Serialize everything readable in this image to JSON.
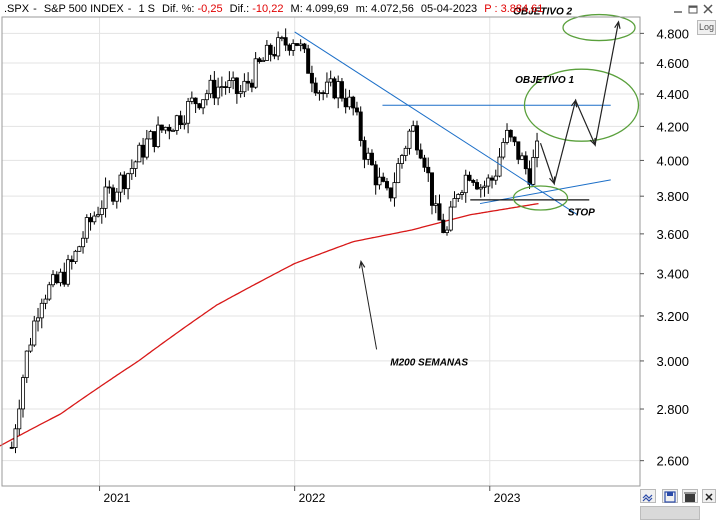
{
  "header": {
    "symbol": ".SPX",
    "name": "S&P 500 INDEX",
    "period": "1 S",
    "dif_pct_label": "Dif. %:",
    "dif_pct_value": "-0,25",
    "dif_label": "Dif.:",
    "dif_value": "-10,22",
    "max_label": "M:",
    "max_value": "4.099,69",
    "min_label": "m:",
    "min_value": "4.072,56",
    "date": "05-04-2023",
    "price_label": "P :",
    "price_value": "3.884,61"
  },
  "controls": {
    "log_label": "Log",
    "min_icon": "minimize-icon",
    "restore_icon": "restore-icon",
    "close_icon": "close-icon",
    "sync_icon": "sync-icon",
    "save_icon": "save-icon",
    "delete_icon": "delete-icon"
  },
  "chart_data": {
    "type": "candlestick",
    "y_ticks": [
      "2.600",
      "2.800",
      "3.000",
      "3.200",
      "3.400",
      "3.600",
      "3.800",
      "4.000",
      "4.200",
      "4.400",
      "4.600",
      "4.800"
    ],
    "x_ticks": [
      "2021",
      "2022",
      "2023"
    ],
    "grid": true,
    "annotations": {
      "objetivo2": "OBJETIVO 2",
      "objetivo1": "OBJETIVO 1",
      "stop": "STOP",
      "m200": "M200 SEMANAS"
    },
    "levels": {
      "resistance": 4330,
      "stop": 3780
    },
    "colors": {
      "ma": "#d81818",
      "trend": "#1c6fc8",
      "target_ring": "#5aa03c",
      "candle": "#000000",
      "projection": "#222222"
    },
    "price_anchors": [
      [
        2020.55,
        2650
      ],
      [
        2020.62,
        3000
      ],
      [
        2020.7,
        3300
      ],
      [
        2020.78,
        3350
      ],
      [
        2020.86,
        3450
      ],
      [
        2020.92,
        3600
      ],
      [
        2021.0,
        3750
      ],
      [
        2021.08,
        3850
      ],
      [
        2021.16,
        3950
      ],
      [
        2021.24,
        4100
      ],
      [
        2021.32,
        4180
      ],
      [
        2021.4,
        4250
      ],
      [
        2021.48,
        4350
      ],
      [
        2021.56,
        4420
      ],
      [
        2021.64,
        4460
      ],
      [
        2021.72,
        4400
      ],
      [
        2021.8,
        4550
      ],
      [
        2021.88,
        4680
      ],
      [
        2021.94,
        4720
      ],
      [
        2022.0,
        4780
      ],
      [
        2022.06,
        4600
      ],
      [
        2022.14,
        4400
      ],
      [
        2022.22,
        4450
      ],
      [
        2022.3,
        4300
      ],
      [
        2022.36,
        4050
      ],
      [
        2022.42,
        3900
      ],
      [
        2022.48,
        3780
      ],
      [
        2022.54,
        4000
      ],
      [
        2022.6,
        4200
      ],
      [
        2022.66,
        4050
      ],
      [
        2022.72,
        3700
      ],
      [
        2022.78,
        3600
      ],
      [
        2022.84,
        3850
      ],
      [
        2022.9,
        3950
      ],
      [
        2022.96,
        3850
      ],
      [
        2023.02,
        3900
      ],
      [
        2023.08,
        4150
      ],
      [
        2023.14,
        4050
      ],
      [
        2023.2,
        3920
      ],
      [
        2023.26,
        4100
      ]
    ],
    "ma200_anchors": [
      [
        2020.45,
        2640
      ],
      [
        2020.8,
        2780
      ],
      [
        2021.2,
        3000
      ],
      [
        2021.6,
        3250
      ],
      [
        2022.0,
        3450
      ],
      [
        2022.3,
        3560
      ],
      [
        2022.6,
        3620
      ],
      [
        2022.9,
        3700
      ],
      [
        2023.25,
        3760
      ]
    ]
  }
}
